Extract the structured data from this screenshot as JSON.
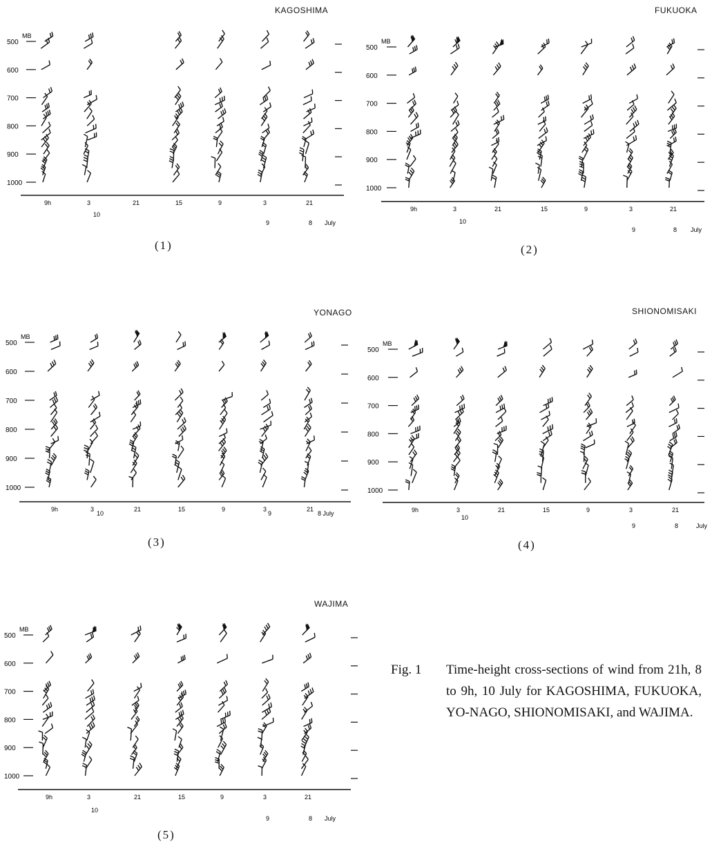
{
  "figure": {
    "caption_prefix": "Fig. 1",
    "caption_text": "Time-height cross-sections of wind from 21h, 8 to 9h, 10 July for KAGOSHIMA, FUKUOKA, YO-NAGO, SHIONOMISAKI, and WAJIMA."
  },
  "panels": [
    {
      "station": "KAGOSHIMA",
      "label": "(1)",
      "pressure_labels": [
        "500",
        "600",
        "700",
        "800",
        "900",
        "1000"
      ],
      "pressure_unit": "MB",
      "time_labels": [
        "9h",
        "3",
        "21",
        "15",
        "9",
        "3",
        "21"
      ],
      "date_labels": [
        "10",
        "9",
        "8",
        "July"
      ]
    },
    {
      "station": "FUKUOKA",
      "label": "(2)",
      "pressure_labels": [
        "500",
        "600",
        "700",
        "800",
        "900",
        "1000"
      ],
      "pressure_unit": "MB",
      "time_labels": [
        "9h",
        "3",
        "21",
        "15",
        "9",
        "3",
        "21"
      ],
      "date_labels": [
        "10",
        "9",
        "8",
        "July"
      ]
    },
    {
      "station": "YONAGO",
      "label": "(3)",
      "pressure_labels": [
        "500",
        "600",
        "700",
        "800",
        "900",
        "1000"
      ],
      "pressure_unit": "MB",
      "time_labels": [
        "9h",
        "3",
        "21",
        "15",
        "9",
        "3",
        "21"
      ],
      "date_labels": [
        "10",
        "9",
        "8 July"
      ]
    },
    {
      "station": "SHIONOMISAKI",
      "label": "(4)",
      "pressure_labels": [
        "500",
        "600",
        "700",
        "800",
        "900",
        "1000"
      ],
      "pressure_unit": "MB",
      "time_labels": [
        "9h",
        "3",
        "21",
        "15",
        "9",
        "3",
        "21"
      ],
      "date_labels": [
        "10",
        "9",
        "8",
        "July"
      ]
    },
    {
      "station": "WAJIMA",
      "label": "(5)",
      "pressure_labels": [
        "500",
        "600",
        "700",
        "800",
        "900",
        "1000"
      ],
      "pressure_unit": "MB",
      "time_labels": [
        "9h",
        "3",
        "21",
        "15",
        "9",
        "3",
        "21"
      ],
      "date_labels": [
        "10",
        "9",
        "8",
        "July"
      ]
    }
  ]
}
